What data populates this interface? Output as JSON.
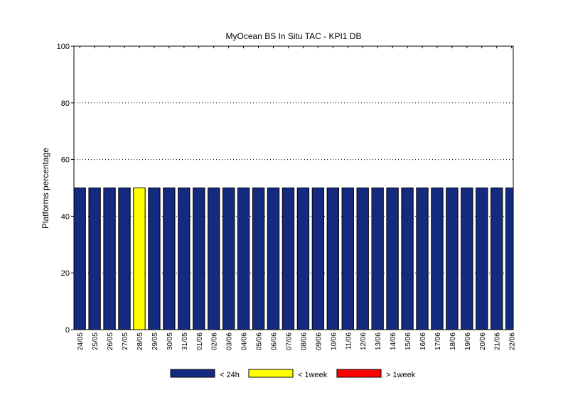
{
  "chart_data": {
    "type": "bar",
    "stacked": true,
    "title": "MyOcean  BS In Situ TAC - KPI1  DB",
    "xlabel": "",
    "ylabel": "Platforms percentage",
    "ylim": [
      0,
      100
    ],
    "yticks": [
      0,
      20,
      40,
      60,
      80,
      100
    ],
    "grid": "dotted horizontal",
    "legend_position": "bottom",
    "categories": [
      "24/05",
      "25/05",
      "26/05",
      "27/05",
      "28/05",
      "29/05",
      "30/05",
      "31/05",
      "01/06",
      "02/06",
      "03/06",
      "04/06",
      "05/06",
      "06/06",
      "07/06",
      "08/06",
      "09/06",
      "10/06",
      "11/06",
      "12/06",
      "13/06",
      "14/06",
      "15/06",
      "16/06",
      "17/06",
      "18/06",
      "19/06",
      "20/06",
      "21/06",
      "22/06"
    ],
    "series": [
      {
        "name": "< 24h",
        "color": "#142a7e",
        "values": [
          50,
          50,
          50,
          50,
          0,
          50,
          50,
          50,
          50,
          50,
          50,
          50,
          50,
          50,
          50,
          50,
          50,
          50,
          50,
          50,
          50,
          50,
          50,
          50,
          50,
          50,
          50,
          50,
          50,
          50
        ]
      },
      {
        "name": "< 1week",
        "color": "#ffff00",
        "values": [
          0,
          0,
          0,
          0,
          50,
          0,
          0,
          0,
          0,
          0,
          0,
          0,
          0,
          0,
          0,
          0,
          0,
          0,
          0,
          0,
          0,
          0,
          0,
          0,
          0,
          0,
          0,
          0,
          0,
          0
        ]
      },
      {
        "name": "> 1week",
        "color": "#ff0000",
        "values": [
          0,
          0,
          0,
          0,
          0,
          0,
          0,
          0,
          0,
          0,
          0,
          0,
          0,
          0,
          0,
          0,
          0,
          0,
          0,
          0,
          0,
          0,
          0,
          0,
          0,
          0,
          0,
          0,
          0,
          0
        ]
      }
    ]
  }
}
